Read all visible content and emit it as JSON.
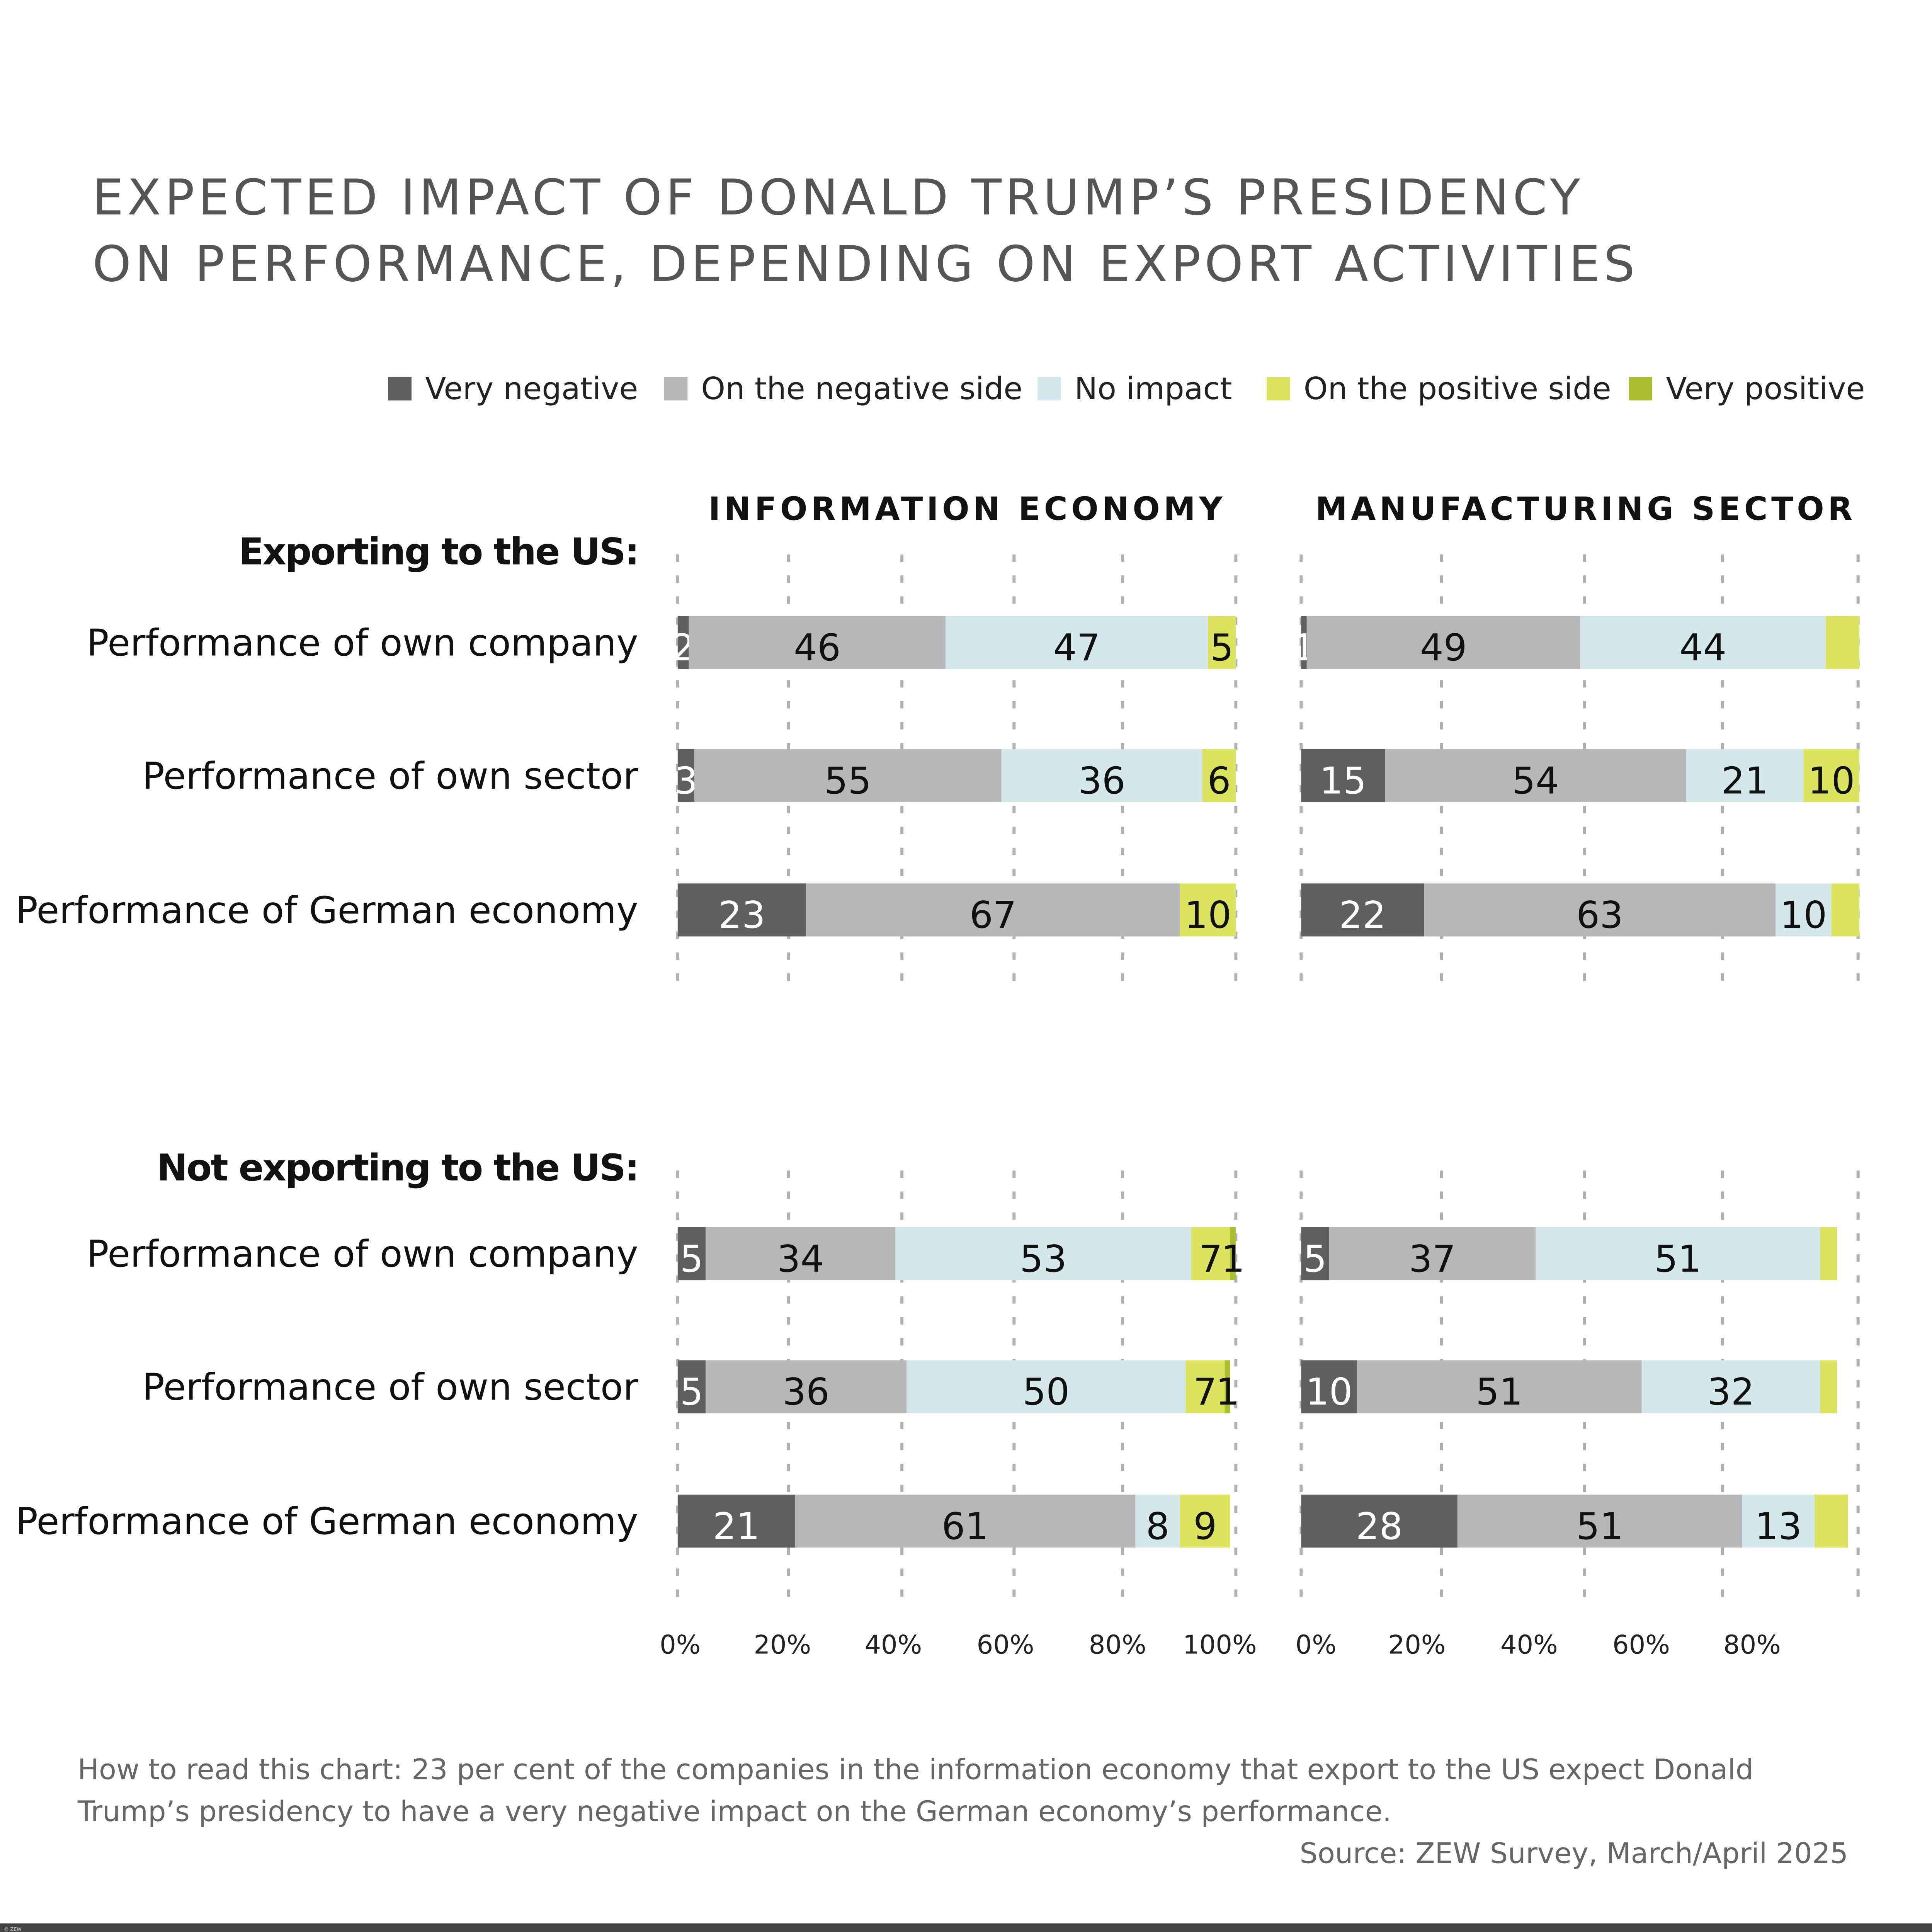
{
  "title_lines": [
    "EXPECTED IMPACT OF DONALD TRUMP’S PRESIDENCY",
    "ON PERFORMANCE, DEPENDING ON EXPORT ACTIVITIES"
  ],
  "colors": {
    "very_negative": "#5f5f5f",
    "negative_side": "#b7b7b7",
    "no_impact": "#d4e7eb",
    "positive_side": "#dbe361",
    "very_positive": "#a9bf2f",
    "title": "#555555",
    "grid": "#b0b0b0"
  },
  "footnote_lines": [
    "How to read this chart: 23 per cent of the companies in the information economy that export to the US expect Donald",
    "Trump’s presidency to have a very negative impact on the German economy’s performance."
  ],
  "source": "Source: ZEW Survey, March/April 2025",
  "credit": "© ZEW",
  "chart_data": {
    "type": "bar",
    "orientation": "horizontal",
    "stacked": true,
    "legend": [
      "Very negative",
      "On the negative side",
      "No impact",
      "On the positive side",
      "Very positive"
    ],
    "legend_placement": "top",
    "xlim": [
      0,
      100
    ],
    "grid": true,
    "panels": [
      {
        "title": "INFORMATION ECONOMY",
        "ticks": [
          "0%",
          "20%",
          "40%",
          "60%",
          "80%",
          "100%"
        ]
      },
      {
        "title": "MANUFACTURING SECTOR",
        "ticks": [
          "0%",
          "20%",
          "40%",
          "60%",
          "80%"
        ]
      }
    ],
    "groups": [
      {
        "label": "Exporting to the US:",
        "categories": [
          "Performance of own company",
          "Performance of own sector",
          "Performance of German economy"
        ],
        "values": [
          [
            [
              2,
              46,
              47,
              5,
              0
            ],
            [
              1,
              49,
              44,
              6,
              0
            ]
          ],
          [
            [
              3,
              55,
              36,
              6,
              0
            ],
            [
              15,
              54,
              21,
              10,
              0
            ]
          ],
          [
            [
              23,
              67,
              0,
              10,
              0
            ],
            [
              22,
              63,
              10,
              5,
              0
            ]
          ]
        ],
        "labels": [
          [
            [
              "2",
              "46",
              "47",
              "5",
              ""
            ],
            [
              "1",
              "49",
              "44",
              "",
              ""
            ]
          ],
          [
            [
              "3",
              "55",
              "36",
              "6",
              ""
            ],
            [
              "15",
              "54",
              "21",
              "10",
              ""
            ]
          ],
          [
            [
              "23",
              "67",
              "",
              "10",
              ""
            ],
            [
              "22",
              "63",
              "10",
              "",
              ""
            ]
          ]
        ]
      },
      {
        "label": "Not exporting to the US:",
        "categories": [
          "Performance of own company",
          "Performance of own sector",
          "Performance of German economy"
        ],
        "values": [
          [
            [
              5,
              34,
              53,
              7,
              1
            ],
            [
              5,
              37,
              51,
              3,
              0
            ]
          ],
          [
            [
              5,
              36,
              50,
              7,
              1
            ],
            [
              10,
              51,
              32,
              3,
              0
            ]
          ],
          [
            [
              21,
              61,
              8,
              9,
              0
            ],
            [
              28,
              51,
              13,
              6,
              0
            ]
          ]
        ],
        "labels": [
          [
            [
              "5",
              "34",
              "53",
              "7",
              "1"
            ],
            [
              "5",
              "37",
              "51",
              "",
              ""
            ]
          ],
          [
            [
              "5",
              "36",
              "50",
              "7",
              "1"
            ],
            [
              "10",
              "51",
              "32",
              "",
              ""
            ]
          ],
          [
            [
              "21",
              "61",
              "8",
              "9",
              ""
            ],
            [
              "28",
              "51",
              "13",
              "",
              ""
            ]
          ]
        ]
      }
    ]
  }
}
